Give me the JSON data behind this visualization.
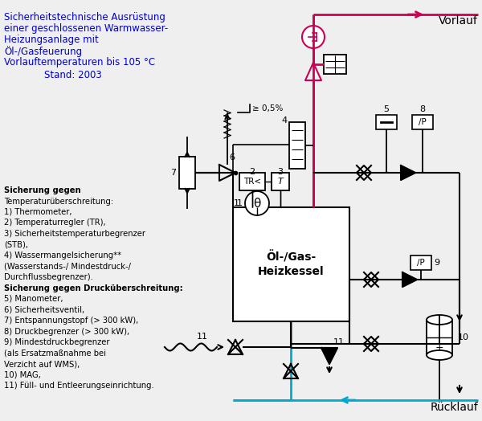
{
  "title_lines": [
    "Sicherheitstechnische Ausrüstung",
    "einer geschlossenen Warmwasser-",
    "Heizungsanlage mit",
    "Öl-/Gasfeuerung",
    "Vorlauftemperaturen bis 105 °C"
  ],
  "stand": "Stand: 2003",
  "title_color": "#0000CC",
  "bg_color": "#EFEFEF",
  "legend_lines": [
    "Sicherung gegen",
    "Temperaturüberschreitung:",
    "1) Thermometer,",
    "2) Temperaturregler (TR),",
    "3) Sicherheitstemperaturbegrenzer",
    "(STB),",
    "4) Wassermangelsicherung**",
    "(Wasserstands-/ Mindestdruck-/",
    "Durchflussbegrenzer).",
    "Sicherung gegen Drucküberschreitung:",
    "5) Manometer,",
    "6) Sicherheitsventil,",
    "7) Entspannungstopf (> 300 kW),",
    "8) Druckbegrenzer (> 300 kW),",
    "9) Mindestdruckbegrenzer",
    "(als Ersatzmaßnahme bei",
    "Verzicht auf WMS),",
    "10) MAG,",
    "11) Füll- und Entleerungseinrichtung."
  ],
  "vorlauf_color": "#CC0055",
  "ruecklauf_color": "#00AACC",
  "boiler_text1": "Öl-/Gas-",
  "boiler_text2": "Heizkessel"
}
